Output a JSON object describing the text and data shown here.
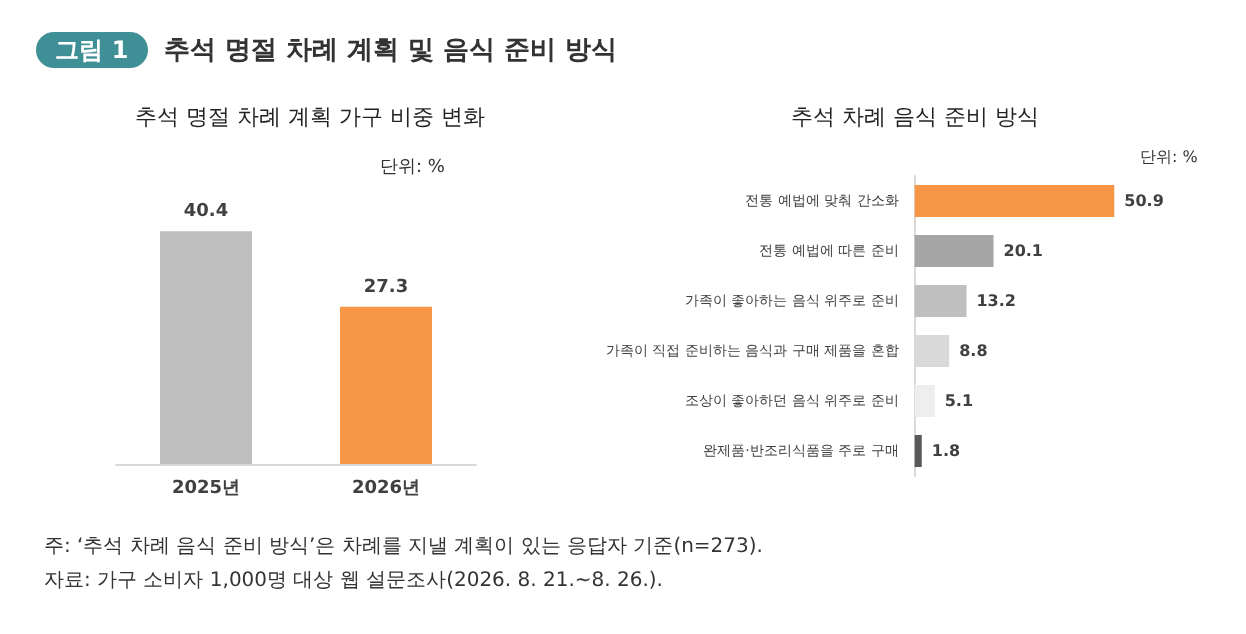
{
  "chart_data": [
    {
      "type": "bar",
      "title": "추석 명절 차례 계획 가구 비중 변화",
      "categories": [
        "2025년",
        "2026년"
      ],
      "values": [
        40.4,
        27.3
      ],
      "colors": [
        "#bfbfbf",
        "#f79646"
      ],
      "data_labels": true,
      "annotations": [
        "그림 1",
        "추석 명절 차례 계획 및 음식 준비 방식",
        "단위: %"
      ]
    },
    {
      "type": "bar",
      "orientation": "horizontal",
      "title": "추석 차례 음식 준비 방식",
      "categories": [
        "전통 예법에 맞춰 간소화",
        "전통 예법에 따른 준비",
        "가족이 좋아하는 음식 위주로 준비",
        "가족이 직접 준비하는 음식과 구매 제품을 혼합",
        "조상이 좋아하던 음식 위주로 준비",
        "완제품·반조리식품을 주로 구매"
      ],
      "values": [
        50.9,
        20.1,
        13.2,
        8.8,
        5.1,
        1.8
      ],
      "colors": [
        "#f79646",
        "#a6a6a6",
        "#bfbfbf",
        "#d9d9d9",
        "#eeeeee",
        "#595959"
      ],
      "data_labels": true,
      "annotations": [
        "단위: %",
        "주: ‘추석 차례 음식 준비 방식’은 차례를 지낼 계획이 있는 응답자 기준(n=273).",
        "자료: 가구 소비자 1,000명 대상 웹 설문조사(2026. 8. 21.~8. 26.)."
      ]
    }
  ]
}
